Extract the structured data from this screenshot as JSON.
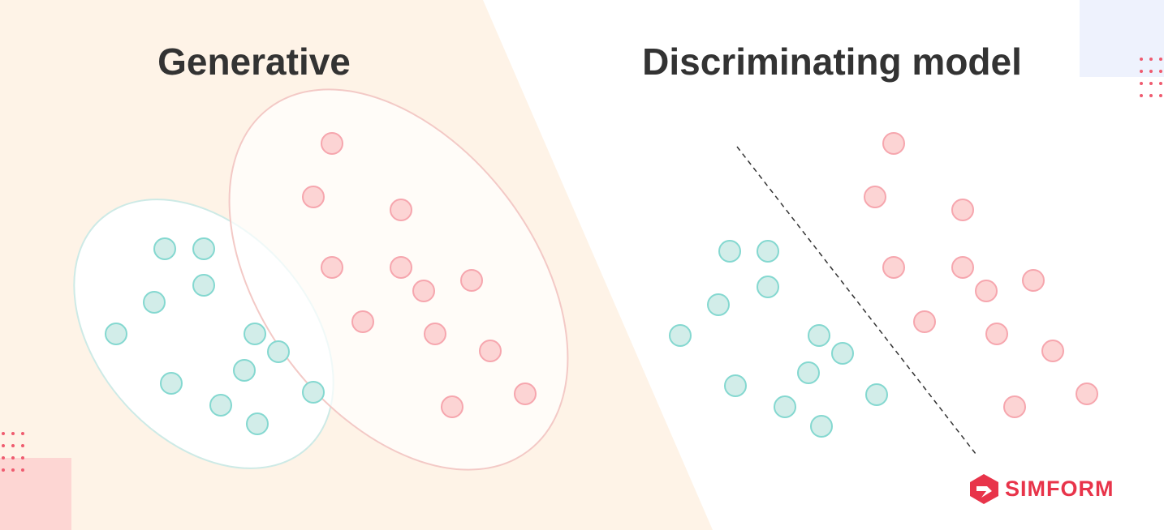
{
  "left": {
    "title": "Generative"
  },
  "right": {
    "title": "Discriminating model"
  },
  "logo": {
    "text": "SIMFORM"
  }
}
